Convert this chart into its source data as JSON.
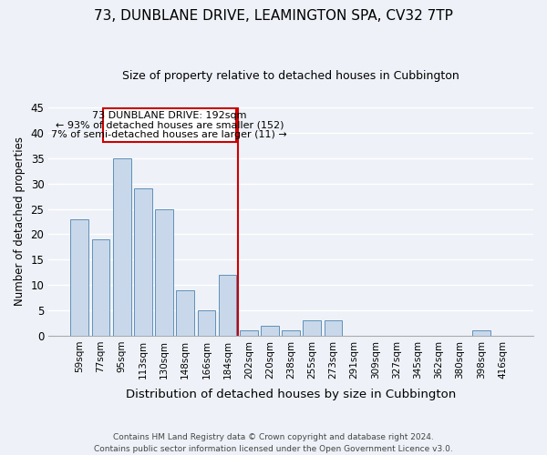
{
  "title": "73, DUNBLANE DRIVE, LEAMINGTON SPA, CV32 7TP",
  "subtitle": "Size of property relative to detached houses in Cubbington",
  "xlabel": "Distribution of detached houses by size in Cubbington",
  "ylabel": "Number of detached properties",
  "bar_color": "#c8d8ea",
  "bar_edge_color": "#6090b8",
  "background_color": "#eef2f8",
  "grid_color": "#d0d8e8",
  "categories": [
    "59sqm",
    "77sqm",
    "95sqm",
    "113sqm",
    "130sqm",
    "148sqm",
    "166sqm",
    "184sqm",
    "202sqm",
    "220sqm",
    "238sqm",
    "255sqm",
    "273sqm",
    "291sqm",
    "309sqm",
    "327sqm",
    "345sqm",
    "362sqm",
    "380sqm",
    "398sqm",
    "416sqm"
  ],
  "values": [
    23,
    19,
    35,
    29,
    25,
    9,
    5,
    12,
    1,
    2,
    1,
    3,
    3,
    0,
    0,
    0,
    0,
    0,
    0,
    1,
    0
  ],
  "ylim": [
    0,
    45
  ],
  "yticks": [
    0,
    5,
    10,
    15,
    20,
    25,
    30,
    35,
    40,
    45
  ],
  "property_line_x": 7.5,
  "property_line_color": "#cc0000",
  "ann_line1": "73 DUNBLANE DRIVE: 192sqm",
  "ann_line2": "← 93% of detached houses are smaller (152)",
  "ann_line3": "7% of semi-detached houses are larger (11) →",
  "annotation_box_color": "#cc0000",
  "footer_line1": "Contains HM Land Registry data © Crown copyright and database right 2024.",
  "footer_line2": "Contains public sector information licensed under the Open Government Licence v3.0."
}
